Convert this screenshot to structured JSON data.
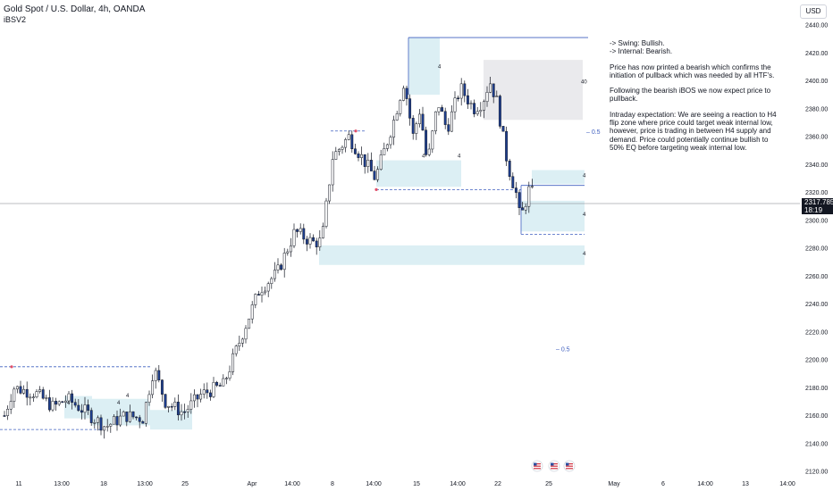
{
  "header": {
    "title": "Gold Spot / U.S. Dollar, 4h, OANDA",
    "indicator": "iBSV2",
    "currency_button": "USD"
  },
  "last_price": {
    "value": "2317.785",
    "countdown": "18:19"
  },
  "annotations": {
    "swing": "-> Swing:  Bullish.",
    "internal": "-> Internal:  Bearish.",
    "p1": "Price has now printed a bearish which confirms the initiation of pullback which was needed by all HTF's.",
    "p2": "Following the bearish iBOS we now expect price to pullback.",
    "p3": "Intraday expectation: We are seeing a reaction to H4 flip zone where price could target weak internal low, however, price is trading in between H4 supply and demand.  Price could potentially continue bullish to 50% EQ before targeting weak internal low."
  },
  "chart_data": {
    "type": "candlestick",
    "ylim": [
      2120,
      2450
    ],
    "y_ticks": [
      2120,
      2140,
      2160,
      2180,
      2200,
      2220,
      2240,
      2260,
      2280,
      2300,
      2320,
      2340,
      2360,
      2380,
      2400,
      2420,
      2440
    ],
    "x_ticks": [
      "11",
      "13:00",
      "18",
      "13:00",
      "25",
      "Apr",
      "14:00",
      "8",
      "14:00",
      "15",
      "14:00",
      "22",
      "25",
      "May",
      "6",
      "14:00",
      "13",
      "14:00"
    ],
    "colors": {
      "up": "#ffffff",
      "down": "#1e3f8f",
      "wick": "#131722",
      "zone_blue": "#d6ecf2",
      "zone_grey": "#e6e6ea",
      "level": "#3f5fbf",
      "point": "#e0506a"
    },
    "zone_labels": [
      "4",
      "4",
      "4",
      "4",
      "4",
      "4",
      "4",
      "4",
      "4",
      "40"
    ],
    "eq_labels": [
      "0.5",
      "0.5"
    ],
    "event_icons": [
      "us-flag-icon",
      "us-flag-icon",
      "us-flag-icon"
    ]
  }
}
